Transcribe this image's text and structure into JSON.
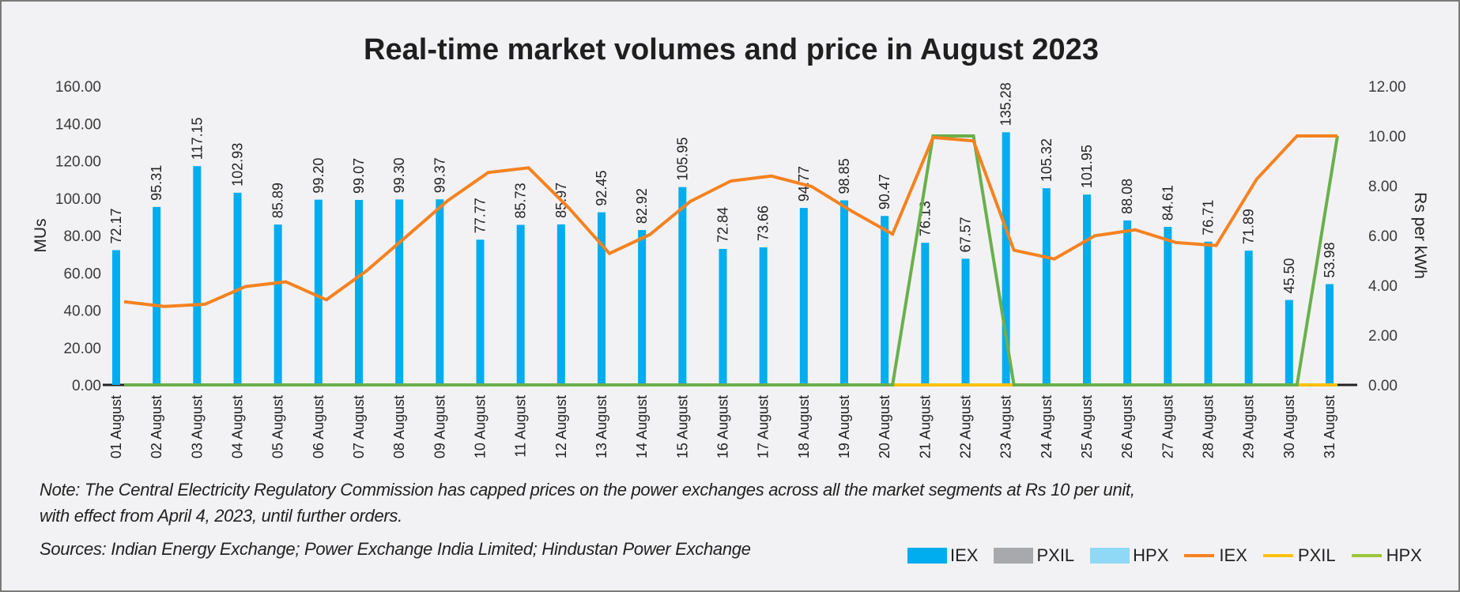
{
  "chart_data": {
    "type": "bar+line",
    "title": "Real-time market volumes and price in August 2023",
    "xlabel": "",
    "ylabel": "MUs",
    "ylabel_right": "Rs per kWh",
    "ylim": [
      0,
      160
    ],
    "ylim_right": [
      0,
      12
    ],
    "yticks": [
      "0.00",
      "20.00",
      "40.00",
      "60.00",
      "80.00",
      "100.00",
      "120.00",
      "140.00",
      "160.00"
    ],
    "yticks_right": [
      "0.00",
      "2.00",
      "4.00",
      "6.00",
      "8.00",
      "10.00",
      "12.00"
    ],
    "grid": false,
    "legend_position": "bottom-right",
    "categories": [
      "01 August",
      "02 August",
      "03 August",
      "04 August",
      "05 August",
      "06 August",
      "07 August",
      "08 August",
      "09 August",
      "10 August",
      "11 August",
      "12 August",
      "13 August",
      "14 August",
      "15 August",
      "16 August",
      "17 August",
      "18 August",
      "19 August",
      "20 August",
      "21 August",
      "22 August",
      "23 August",
      "24 August",
      "25 August",
      "26 August",
      "27 August",
      "28 August",
      "29 August",
      "30 August",
      "31 August"
    ],
    "bar_series": [
      {
        "name": "IEX",
        "color": "#00adef",
        "axis": "left",
        "values": [
          72.17,
          95.31,
          117.15,
          102.93,
          85.89,
          99.2,
          99.07,
          99.3,
          99.37,
          77.77,
          85.73,
          85.97,
          92.45,
          82.92,
          105.95,
          72.84,
          73.66,
          94.77,
          98.85,
          90.47,
          76.13,
          67.57,
          135.28,
          105.32,
          101.95,
          88.08,
          84.61,
          76.71,
          71.89,
          45.5,
          53.98
        ],
        "labels": [
          "72.17",
          "95.31",
          "117.15",
          "102.93",
          "85.89",
          "99.20",
          "99.07",
          "99.30",
          "99.37",
          "77.77",
          "85.73",
          "85.97",
          "92.45",
          "82.92",
          "105.95",
          "72.84",
          "73.66",
          "94.77",
          "98.85",
          "90.47",
          "76.13",
          "67.57",
          "135.28",
          "105.32",
          "101.95",
          "88.08",
          "84.61",
          "76.71",
          "71.89",
          "45.50",
          "53.98"
        ]
      },
      {
        "name": "PXIL",
        "color": "#a7a9ac",
        "axis": "left",
        "values": [
          0,
          0,
          0,
          0,
          0,
          0,
          0,
          0,
          0,
          0,
          0,
          0,
          0,
          0,
          0,
          0,
          0,
          0,
          0,
          0,
          0,
          0,
          0,
          0,
          0,
          0,
          0,
          0,
          0,
          0,
          0
        ]
      },
      {
        "name": "HPX",
        "color": "#8fd8f6",
        "axis": "left",
        "values": [
          0,
          0,
          0,
          0,
          0,
          0,
          0,
          0,
          0,
          0,
          0,
          0,
          0,
          0,
          0,
          0,
          0,
          0,
          0,
          0,
          0,
          0,
          0,
          0,
          0,
          0,
          0,
          0,
          0,
          0,
          0
        ]
      }
    ],
    "line_series": [
      {
        "name": "IEX",
        "color": "#f58220",
        "axis": "right",
        "values": [
          3.34,
          3.15,
          3.24,
          3.95,
          4.14,
          3.42,
          4.59,
          5.99,
          7.4,
          8.53,
          8.72,
          7.1,
          5.28,
          6.04,
          7.37,
          8.19,
          8.39,
          7.97,
          6.97,
          6.06,
          9.94,
          9.8,
          5.41,
          5.06,
          5.99,
          6.23,
          5.72,
          5.6,
          8.26,
          10.0,
          10.0
        ]
      },
      {
        "name": "PXIL",
        "color": "#ffc20e",
        "axis": "right",
        "values": [
          0,
          0,
          0,
          0,
          0,
          0,
          0,
          0,
          0,
          0,
          0,
          0,
          0,
          0,
          0,
          0,
          0,
          0,
          0,
          0,
          0,
          0,
          0,
          0,
          0,
          0,
          0,
          0,
          0,
          0,
          0
        ]
      },
      {
        "name": "HPX",
        "color": "#6ab04c",
        "axis": "right",
        "values": [
          0,
          0,
          0,
          0,
          0,
          0,
          0,
          0,
          0,
          0,
          0,
          0,
          0,
          0,
          0,
          0,
          0,
          0,
          0,
          0,
          10.0,
          10.0,
          0,
          0,
          0,
          0,
          0,
          0,
          0,
          0,
          10.0
        ]
      }
    ]
  },
  "note": {
    "line1": "Note: The Central Electricity Regulatory Commission has capped prices on the power exchanges across all the market segments at Rs 10 per unit,",
    "line2": "with effect from April 4, 2023, until further orders.",
    "sources": "Sources: Indian Energy Exchange; Power Exchange India Limited; Hindustan Power Exchange"
  },
  "legend": [
    {
      "label": "IEX",
      "kind": "box",
      "color": "#00adef"
    },
    {
      "label": "PXIL",
      "kind": "box",
      "color": "#a7a9ac"
    },
    {
      "label": "HPX",
      "kind": "box",
      "color": "#8fd8f6"
    },
    {
      "label": "IEX",
      "kind": "line",
      "color": "#f58220"
    },
    {
      "label": "PXIL",
      "kind": "line",
      "color": "#ffc20e"
    },
    {
      "label": "HPX",
      "kind": "line",
      "color": "#6ab04c"
    }
  ]
}
